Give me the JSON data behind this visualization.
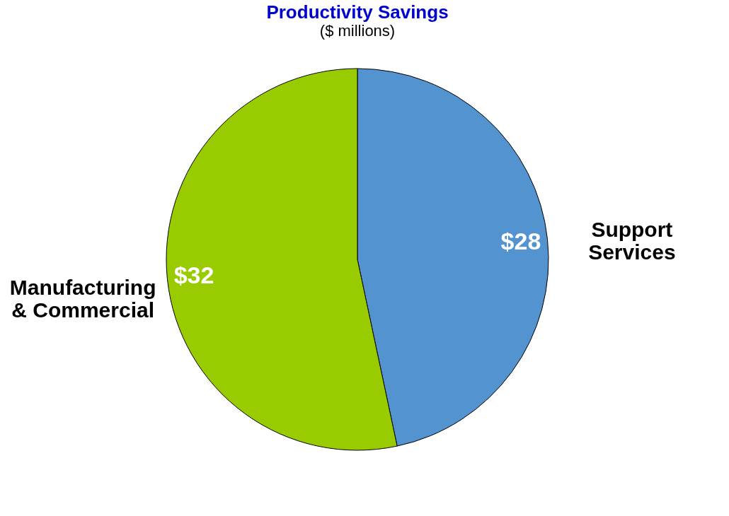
{
  "chart_data": {
    "type": "pie",
    "title": "Productivity Savings",
    "subtitle": "($ millions)",
    "categories": [
      "Support Services",
      "Manufacturing & Commercial"
    ],
    "values": [
      28,
      32
    ],
    "colors": [
      "#5393d0",
      "#99cc00"
    ],
    "value_labels": [
      "$28",
      "$32"
    ],
    "legend": false
  }
}
